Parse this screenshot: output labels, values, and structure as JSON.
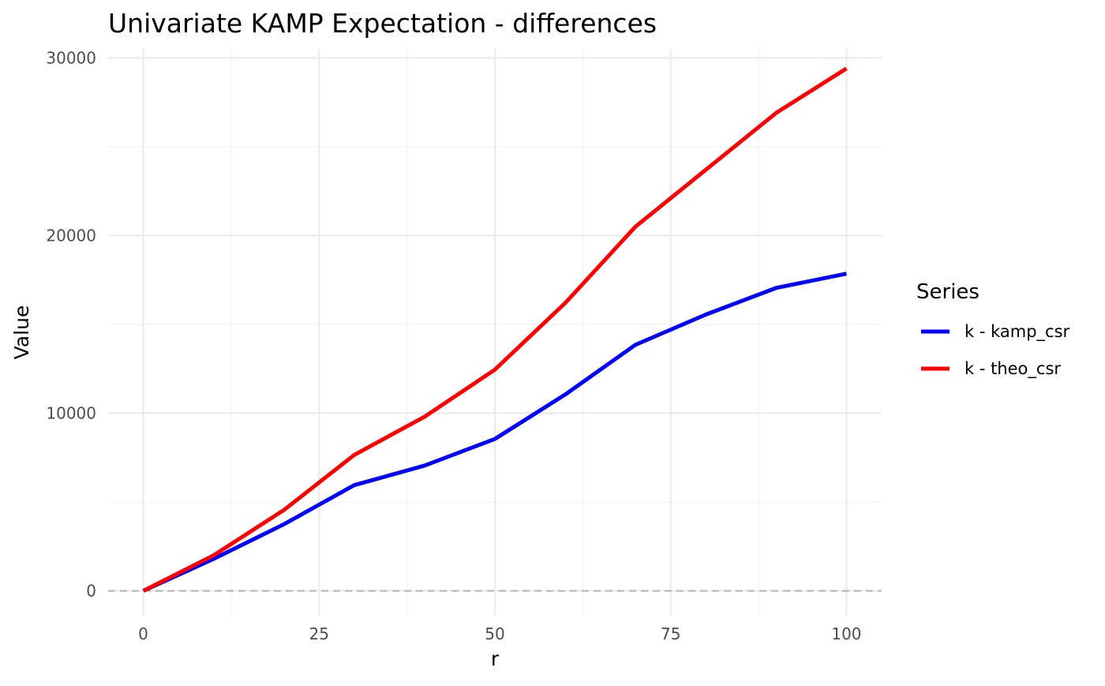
{
  "chart_data": {
    "type": "line",
    "title": "Univariate KAMP Expectation - differences",
    "xlabel": "r",
    "ylabel": "Value",
    "x": [
      0,
      10,
      20,
      30,
      40,
      50,
      60,
      70,
      80,
      90,
      100
    ],
    "xlim": [
      -5,
      105
    ],
    "ylim": [
      -1400,
      30500
    ],
    "x_ticks": [
      0,
      25,
      50,
      75,
      100
    ],
    "y_ticks": [
      0,
      10000,
      20000,
      30000
    ],
    "grid": true,
    "reference_line": {
      "y": 0,
      "style": "dashed",
      "color": "#b3b3b3"
    },
    "legend": {
      "title": "Series",
      "position": "right"
    },
    "series": [
      {
        "name": "k - kamp_csr",
        "color": "#0000ff",
        "values": [
          0,
          1800,
          3750,
          5950,
          7050,
          8550,
          11050,
          13850,
          15550,
          17050,
          17850
        ]
      },
      {
        "name": "k - theo_csr",
        "color": "#ff0000",
        "values": [
          0,
          2000,
          4550,
          7650,
          9800,
          12450,
          16200,
          20500,
          23700,
          26900,
          29400
        ]
      }
    ]
  }
}
